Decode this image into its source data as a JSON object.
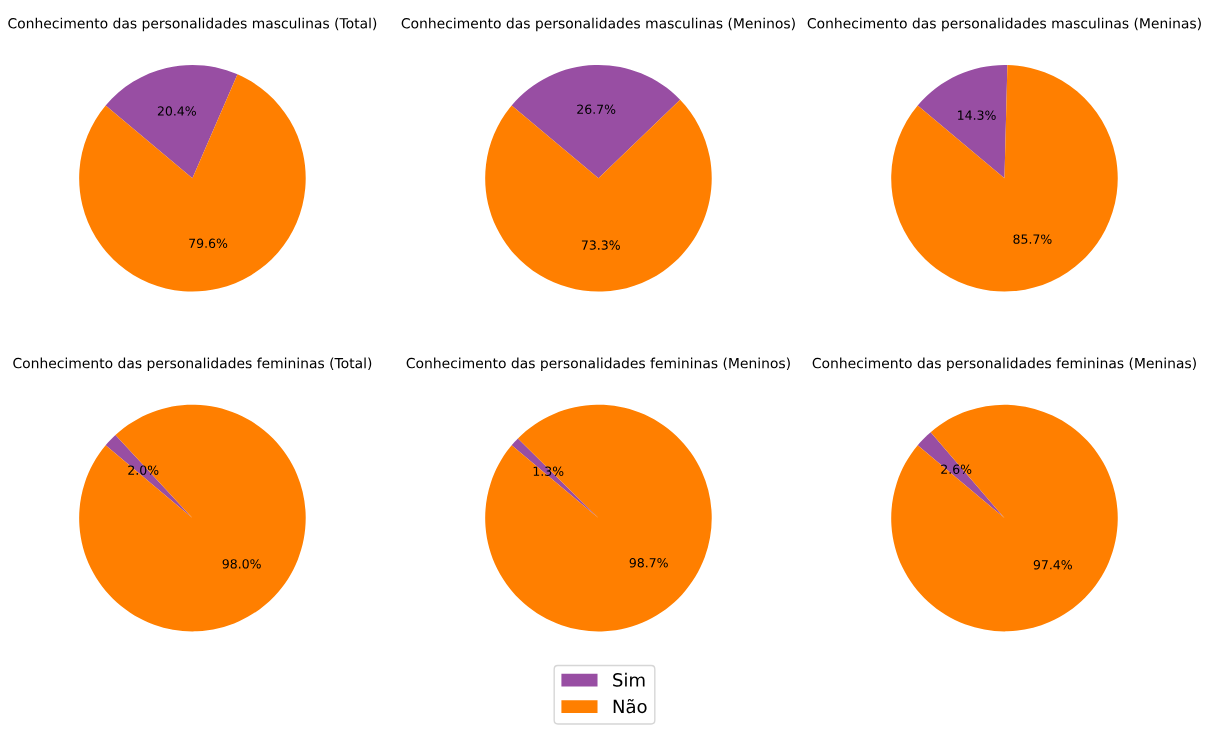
{
  "chart_data": [
    {
      "type": "pie",
      "title": "Conhecimento das personalidades masculinas (Total)",
      "categories": [
        "Sim",
        "Não"
      ],
      "values": [
        20.4,
        79.6
      ],
      "value_labels": [
        "20.4%",
        "79.6%"
      ],
      "colors": [
        "#984ea3",
        "#ff7f00"
      ],
      "legend": "bottom"
    },
    {
      "type": "pie",
      "title": "Conhecimento das personalidades masculinas (Meninos)",
      "values": [
        26.7,
        73.3
      ],
      "value_labels": [
        "26.7%",
        "73.3%"
      ],
      "colors": [
        "#984ea3",
        "#ff7f00"
      ]
    },
    {
      "type": "pie",
      "title": "Conhecimento das personalidades masculinas (Meninas)",
      "values": [
        14.3,
        85.7
      ],
      "value_labels": [
        "14.3%",
        "85.7%"
      ],
      "colors": [
        "#984ea3",
        "#ff7f00"
      ]
    },
    {
      "type": "pie",
      "title": "Conhecimento das personalidades femininas (Total)",
      "values": [
        2.0,
        98.0
      ],
      "value_labels": [
        "2.0%",
        "98.0%"
      ],
      "colors": [
        "#984ea3",
        "#ff7f00"
      ]
    },
    {
      "type": "pie",
      "title": "Conhecimento das personalidades femininas (Meninos)",
      "values": [
        1.3,
        98.7
      ],
      "value_labels": [
        "1.3%",
        "98.7%"
      ],
      "colors": [
        "#984ea3",
        "#ff7f00"
      ]
    },
    {
      "type": "pie",
      "title": "Conhecimento das personalidades femininas (Meninas)",
      "values": [
        2.6,
        97.4
      ],
      "value_labels": [
        "2.6%",
        "97.4%"
      ],
      "colors": [
        "#984ea3",
        "#ff7f00"
      ]
    }
  ]
}
